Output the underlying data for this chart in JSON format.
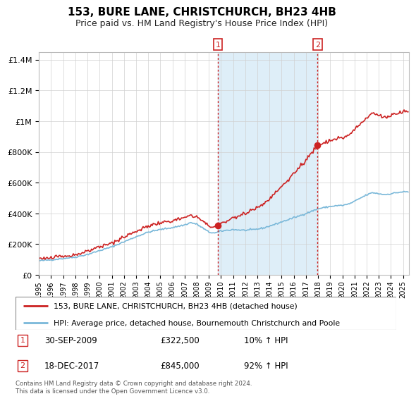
{
  "title": "153, BURE LANE, CHRISTCHURCH, BH23 4HB",
  "subtitle": "Price paid vs. HM Land Registry's House Price Index (HPI)",
  "legend_line1": "153, BURE LANE, CHRISTCHURCH, BH23 4HB (detached house)",
  "legend_line2": "HPI: Average price, detached house, Bournemouth Christchurch and Poole",
  "annotation1_label": "1",
  "annotation1_date": "30-SEP-2009",
  "annotation1_price": "£322,500",
  "annotation1_hpi": "10% ↑ HPI",
  "annotation2_label": "2",
  "annotation2_date": "18-DEC-2017",
  "annotation2_price": "£845,000",
  "annotation2_hpi": "92% ↑ HPI",
  "footnote": "Contains HM Land Registry data © Crown copyright and database right 2024.\nThis data is licensed under the Open Government Licence v3.0.",
  "sale1_x": 2009.75,
  "sale1_y": 322500,
  "sale2_x": 2017.96,
  "sale2_y": 845000,
  "hpi_color": "#7ab8d9",
  "price_color": "#cc2222",
  "shading_color": "#deeef8",
  "vline_color": "#cc2222",
  "ylim": [
    0,
    1450000
  ],
  "xlim_left": 1995.0,
  "xlim_right": 2025.5,
  "yticks": [
    0,
    200000,
    400000,
    600000,
    800000,
    1000000,
    1200000,
    1400000
  ],
  "ytick_labels": [
    "£0",
    "£200K",
    "£400K",
    "£600K",
    "£800K",
    "£1M",
    "£1.2M",
    "£1.4M"
  ],
  "xticks": [
    1995,
    1996,
    1997,
    1998,
    1999,
    2000,
    2001,
    2002,
    2003,
    2004,
    2005,
    2006,
    2007,
    2008,
    2009,
    2010,
    2011,
    2012,
    2013,
    2014,
    2015,
    2016,
    2017,
    2018,
    2019,
    2020,
    2021,
    2022,
    2023,
    2024,
    2025
  ]
}
